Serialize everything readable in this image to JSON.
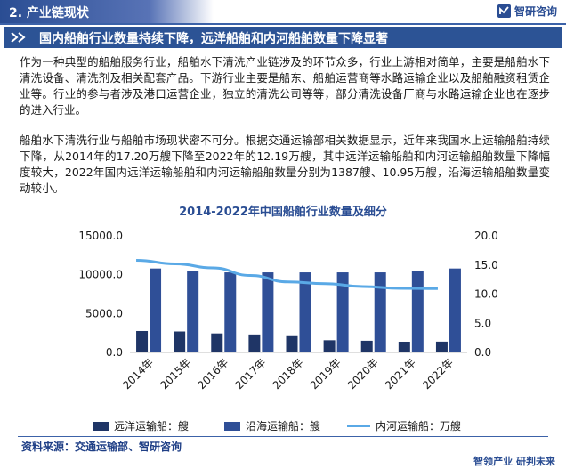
{
  "section": {
    "title": "2. 产业链现状"
  },
  "brand": {
    "name": "智研咨询"
  },
  "header": {
    "title": "国内船舶行业数量持续下降，远洋船舶和内河船舶数量下降显著"
  },
  "paragraphs": [
    "作为一种典型的船舶服务行业，船舶水下清洗产业链涉及的环节众多，行业上游相对简单，主要是船舶水下清洗设备、清洗剂及相关配套产品。下游行业主要是船东、船舶运营商等水路运输企业以及船舶融资租赁企业等。行业的参与者涉及港口运营企业，独立的清洗公司等等，部分清洗设备厂商与水路运输企业也在逐步的进入行业。",
    "船舶水下清洗行业与船舶市场现状密不可分。根据交通运输部相关数据显示，近年来我国水上运输船舶持续下降，从2014年的17.20万艘下降至2022年的12.19万艘，其中远洋运输船舶和内河运输船舶数量下降幅度较大，2022年国内远洋运输船舶和内河运输船舶数量分别为1387艘、10.95万艘，沿海运输船舶数量变动较小。"
  ],
  "chart_data": {
    "type": "bar",
    "title": "2014-2022年中国船舶行业数量及细分",
    "categories": [
      "2014年",
      "2015年",
      "2016年",
      "2017年",
      "2018年",
      "2019年",
      "2020年",
      "2021年",
      "2022年"
    ],
    "series": [
      {
        "name": "远洋运输船：艘",
        "type": "bar",
        "axis": "left",
        "color": "#1f3566",
        "values": [
          2750,
          2690,
          2440,
          2306,
          2202,
          1564,
          1499,
          1375,
          1387
        ]
      },
      {
        "name": "沿海运输船：艘",
        "type": "bar",
        "axis": "left",
        "color": "#2f4f97",
        "values": [
          10800,
          10500,
          10300,
          10300,
          10300,
          10300,
          10300,
          10500,
          10800
        ]
      },
      {
        "name": "内河运输船：万艘",
        "type": "line",
        "axis": "right",
        "color": "#5aa9e6",
        "values": [
          15.8,
          15.2,
          14.5,
          13.2,
          12.1,
          11.8,
          11.3,
          11.0,
          10.95
        ]
      }
    ],
    "y_left": {
      "ticks": [
        "15000.0",
        "10000.0",
        "5000.0",
        "0.0"
      ],
      "min": 0,
      "max": 15000
    },
    "y_right": {
      "ticks": [
        "20.0",
        "15.0",
        "10.0",
        "5.0",
        "0.0"
      ],
      "min": 0,
      "max": 20
    },
    "legend_position": "bottom"
  },
  "source": {
    "text": "资料来源：交通运输部、智研咨询"
  },
  "slogan": {
    "text": "智领产业 研判未来"
  },
  "colors": {
    "brand_blue": "#2c5395",
    "accent_blue": "#5aa9e6",
    "dark_bar": "#1f3566"
  }
}
